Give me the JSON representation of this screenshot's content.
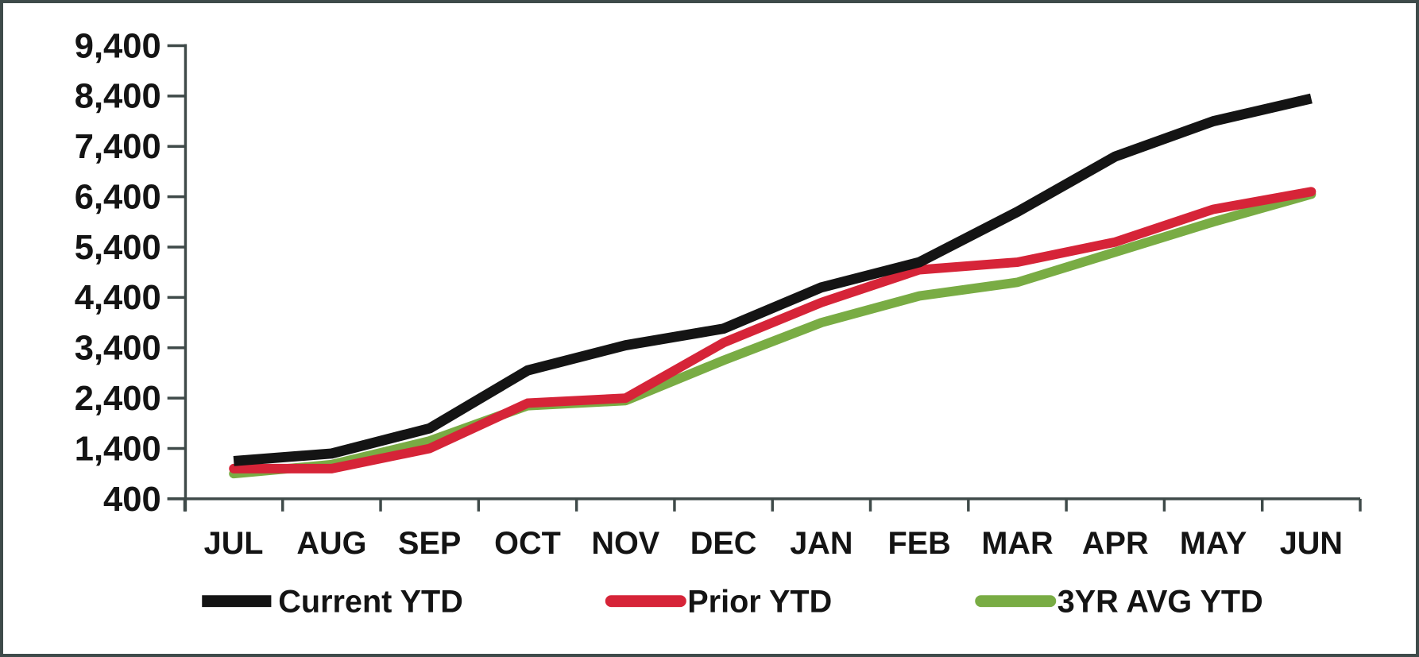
{
  "frame": {
    "background_color": "#ffffff",
    "border_color": "#3e4b4a"
  },
  "chart_data": {
    "type": "line",
    "categories": [
      "JUL",
      "AUG",
      "SEP",
      "OCT",
      "NOV",
      "DEC",
      "JAN",
      "FEB",
      "MAR",
      "APR",
      "MAY",
      "JUN"
    ],
    "series": [
      {
        "name": "Current YTD",
        "color": "#141414",
        "values": [
          1150,
          1300,
          1800,
          2950,
          3450,
          3780,
          4600,
          5100,
          6100,
          7200,
          7900,
          8350
        ]
      },
      {
        "name": "Prior YTD",
        "color": "#d62438",
        "values": [
          1000,
          1000,
          1400,
          2300,
          2400,
          3500,
          4300,
          4950,
          5100,
          5500,
          6150,
          6500
        ]
      },
      {
        "name": "3YR AVG YTD",
        "color": "#79ac44",
        "values": [
          900,
          1080,
          1550,
          2250,
          2350,
          3150,
          3900,
          4430,
          4700,
          5300,
          5900,
          6450
        ]
      }
    ],
    "y_axis": {
      "min": 400,
      "max": 9400,
      "step": 1000,
      "tick_labels": [
        "400",
        "1,400",
        "2,400",
        "3,400",
        "4,400",
        "5,400",
        "6,400",
        "7,400",
        "8,400",
        "9,400"
      ]
    },
    "x_axis": {
      "tick_count": 13
    },
    "axis_color": "#3f4a49",
    "grid": false,
    "legend_position": "bottom"
  }
}
